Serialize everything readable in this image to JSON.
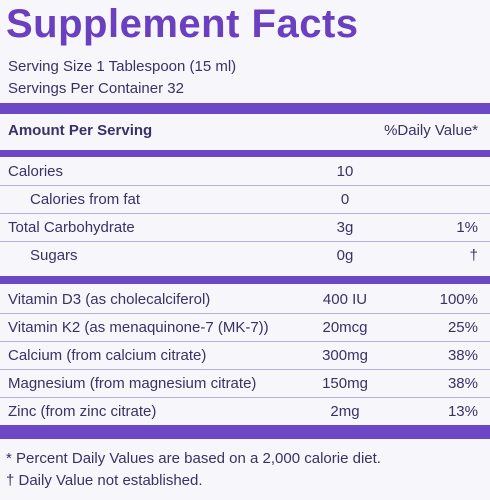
{
  "title": "Supplement Facts",
  "serving_size": "Serving Size 1 Tablespoon (15 ml)",
  "servings_per_container": "Servings Per Container 32",
  "header": {
    "amount": "Amount Per Serving",
    "daily_value": "%Daily Value*"
  },
  "sections": [
    {
      "rows": [
        {
          "name": "Calories",
          "amount": "10"
        },
        {
          "name": "Calories from fat",
          "amount": "0"
        },
        {
          "name": "Total Carbohydrate",
          "amount": "3g",
          "daily_value": "1%"
        },
        {
          "name": "Sugars",
          "amount": "0g",
          "daily_value": "†"
        }
      ]
    },
    {
      "rows": [
        {
          "name": "Vitamin D3 (as cholecalciferol)",
          "amount": "400 IU",
          "daily_value": "100%"
        },
        {
          "name": "Vitamin K2 (as menaquinone-7 (MK-7))",
          "amount": "20mcg",
          "daily_value": "25%"
        },
        {
          "name": "Calcium (from calcium citrate)",
          "amount": "300mg",
          "daily_value": "38%"
        },
        {
          "name": "Magnesium (from magnesium citrate)",
          "amount": "150mg",
          "daily_value": "38%"
        },
        {
          "name": "Zinc (from zinc citrate)",
          "amount": "2mg",
          "daily_value": "13%"
        }
      ]
    }
  ],
  "footnotes": [
    "* Percent Daily Values are based on a 2,000 calorie diet.",
    "† Daily Value not established."
  ]
}
